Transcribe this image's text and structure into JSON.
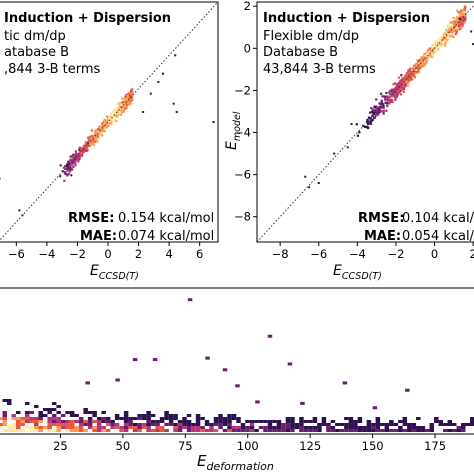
{
  "chart_data": [
    {
      "type": "scatter",
      "panel": "left",
      "title": "Induction + Dispersion",
      "annotations": [
        "tic dm/dp",
        "atabase B",
        ",844 3-B terms"
      ],
      "metrics": [
        {
          "name": "RMSE:",
          "value": "0.154 kcal/mol"
        },
        {
          "name": "MAE:",
          "value": "0.074 kcal/mol"
        }
      ],
      "xlabel": "E",
      "xlabel_sub": "CCSD(T)",
      "xlim": [
        -7.2,
        7.2
      ],
      "ylim": [
        -7.2,
        7.2
      ],
      "xticks": [
        -6,
        -4,
        -2,
        0,
        2,
        4,
        6
      ],
      "identity_line": true,
      "colormap": [
        "#2d1152",
        "#6b1e6e",
        "#b5367a",
        "#e8583f",
        "#f89d59",
        "#fde9a9"
      ],
      "main_cloud": {
        "x_range": [
          -3.4,
          1.6
        ],
        "slope": 1.02,
        "density_peak_x": 0.3
      },
      "outliers": [
        {
          "x": -7.1,
          "y": -3.4
        },
        {
          "x": -5.8,
          "y": -5.3
        },
        {
          "x": -5.6,
          "y": -5.6
        },
        {
          "x": -2.4,
          "y": -3.2
        },
        {
          "x": -3.1,
          "y": -2.6
        },
        {
          "x": 2.3,
          "y": 0.6
        },
        {
          "x": 2.8,
          "y": 1.7
        },
        {
          "x": 3.3,
          "y": 2.4
        },
        {
          "x": 3.6,
          "y": 2.9
        },
        {
          "x": 4.3,
          "y": 1.1
        },
        {
          "x": 4.5,
          "y": 0.6
        },
        {
          "x": 6.9,
          "y": 0.0
        },
        {
          "x": 4.4,
          "y": 4.0
        }
      ]
    },
    {
      "type": "scatter",
      "panel": "right",
      "title": "Induction + Dispersion",
      "annotations": [
        "Flexible dm/dp",
        "Database B",
        "43,844 3-B terms"
      ],
      "metrics": [
        {
          "name": "RMSE:",
          "value": "0.104 kcal/"
        },
        {
          "name": "MAE:",
          "value": "0.054 kcal/"
        }
      ],
      "xlabel": "E",
      "xlabel_sub": "CCSD(T)",
      "ylabel": "E",
      "ylabel_sub": "model",
      "xlim": [
        -9.2,
        2.2
      ],
      "ylim": [
        -9.2,
        2.2
      ],
      "xticks": [
        -8,
        -6,
        -4,
        -2,
        0,
        2
      ],
      "yticks": [
        -8,
        -6,
        -4,
        -2,
        0,
        2
      ],
      "identity_line": true,
      "main_cloud": {
        "x_range": [
          -4.2,
          1.6
        ],
        "slope": 1.0,
        "density_peak_x": 0.2
      },
      "outliers": [
        {
          "x": -6.7,
          "y": -6.1
        },
        {
          "x": -6.5,
          "y": -6.6
        },
        {
          "x": -6.0,
          "y": -6.4
        },
        {
          "x": -4.5,
          "y": -4.7
        },
        {
          "x": -4.3,
          "y": -3.6
        },
        {
          "x": -5.2,
          "y": -5.0
        },
        {
          "x": 1.9,
          "y": 0.8
        },
        {
          "x": 1.3,
          "y": 1.4
        },
        {
          "x": 2.0,
          "y": 0.2
        }
      ]
    },
    {
      "type": "heatmap",
      "panel": "bottom",
      "xlabel": "E",
      "xlabel_sub": "deformation",
      "xlim": [
        0,
        193
      ],
      "xticks": [
        25,
        50,
        75,
        100,
        125,
        150,
        175
      ],
      "high_points": [
        {
          "x": 76,
          "h": 0.93
        },
        {
          "x": 108,
          "h": 0.68
        },
        {
          "x": 54,
          "h": 0.52
        },
        {
          "x": 62,
          "h": 0.52
        },
        {
          "x": 83,
          "h": 0.53
        },
        {
          "x": 90,
          "h": 0.45
        },
        {
          "x": 116,
          "h": 0.49
        },
        {
          "x": 138,
          "h": 0.36
        },
        {
          "x": 95,
          "h": 0.34
        },
        {
          "x": 163,
          "h": 0.31
        },
        {
          "x": 35,
          "h": 0.36
        },
        {
          "x": 47,
          "h": 0.38
        },
        {
          "x": 103,
          "h": 0.23
        },
        {
          "x": 121,
          "h": 0.22
        },
        {
          "x": 150,
          "h": 0.19
        }
      ]
    }
  ]
}
